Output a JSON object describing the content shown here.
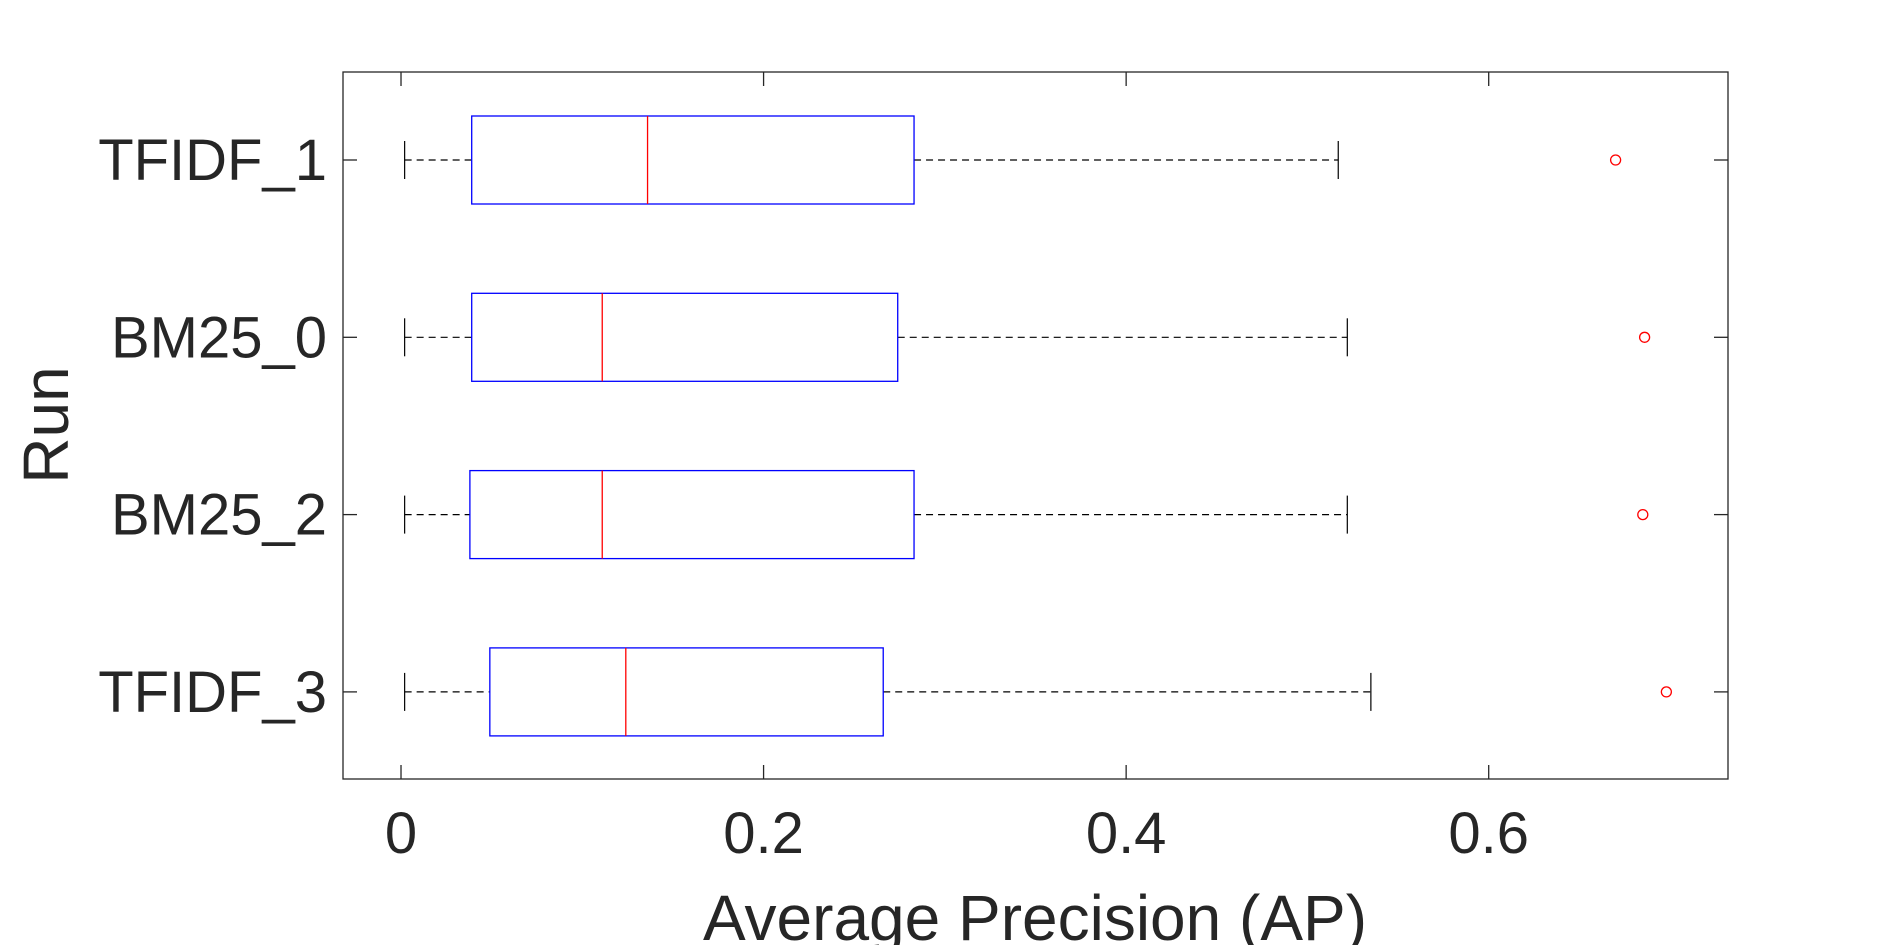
{
  "chart_data": {
    "type": "boxplot",
    "orientation": "horizontal",
    "title": "",
    "xlabel": "Average Precision (AP)",
    "ylabel": "Run",
    "xlim": [
      -0.032,
      0.732
    ],
    "xticks": [
      0,
      0.2,
      0.4,
      0.6
    ],
    "xtick_labels": [
      "0",
      "0.2",
      "0.4",
      "0.6"
    ],
    "grid": false,
    "colors": {
      "box": "#0000ff",
      "median": "#ff0000",
      "whisker": "#000000",
      "outlier": "#ff0000",
      "axis": "#262626"
    },
    "categories": [
      "TFIDF_1",
      "BM25_0",
      "BM25_2",
      "TFIDF_3"
    ],
    "boxes": [
      {
        "label": "TFIDF_1",
        "whisker_low": 0.002,
        "q1": 0.039,
        "median": 0.136,
        "q3": 0.283,
        "whisker_high": 0.517,
        "outliers": [
          0.67
        ]
      },
      {
        "label": "BM25_0",
        "whisker_low": 0.002,
        "q1": 0.039,
        "median": 0.111,
        "q3": 0.274,
        "whisker_high": 0.522,
        "outliers": [
          0.686
        ]
      },
      {
        "label": "BM25_2",
        "whisker_low": 0.002,
        "q1": 0.038,
        "median": 0.111,
        "q3": 0.283,
        "whisker_high": 0.522,
        "outliers": [
          0.685
        ]
      },
      {
        "label": "TFIDF_3",
        "whisker_low": 0.002,
        "q1": 0.049,
        "median": 0.124,
        "q3": 0.266,
        "whisker_high": 0.535,
        "outliers": [
          0.698
        ]
      }
    ]
  }
}
